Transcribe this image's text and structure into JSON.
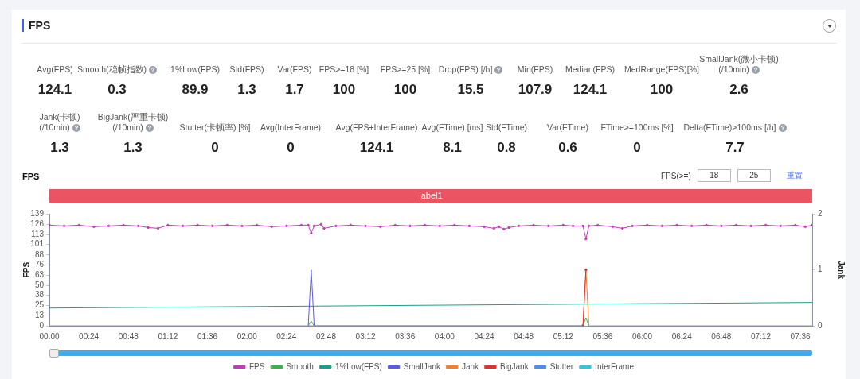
{
  "chart_data": [
    {
      "type": "other",
      "title": "FPS",
      "categories": [
        "Avg(FPS)",
        "Smooth(稳帧指数)",
        "1%Low(FPS)",
        "Std(FPS)",
        "Var(FPS)",
        "FPS>=18 [%]",
        "FPS>=25 [%]",
        "Drop(FPS) [/h]",
        "Min(FPS)",
        "Median(FPS)",
        "MedRange(FPS)[%]",
        "SmallJank(微小卡顿)\n(/10min)",
        "Jank(卡顿)\n(/10min)",
        "BigJank(严重卡顿)\n(/10min)",
        "Stutter(卡顿率) [%]",
        "Avg(InterFrame)",
        "Avg(FPS+InterFrame)",
        "Avg(FTime) [ms]",
        "Std(FTime)",
        "Var(FTime)",
        "FTime>=100ms [%]",
        "Delta(FTime)>100ms [/h]"
      ],
      "values": [
        124.1,
        0.3,
        89.9,
        1.3,
        1.7,
        100,
        100,
        15.5,
        107.9,
        124.1,
        100,
        2.6,
        1.3,
        1.3,
        0,
        0,
        124.1,
        8.1,
        0.8,
        0.6,
        0,
        7.7
      ],
      "data_labels": true
    },
    {
      "type": "line",
      "title": "FPS",
      "ylabel": "FPS",
      "y2label": "Jank",
      "annotations": [
        "label1",
        "FPS(>=)",
        "18",
        "25",
        "重置"
      ],
      "xlim": [
        0,
        7.72
      ],
      "xticks": [
        {
          "value": 0,
          "label": "00:00"
        },
        {
          "value": 0.4,
          "label": "00:24"
        },
        {
          "value": 0.8,
          "label": "00:48"
        },
        {
          "value": 1.2,
          "label": "01:12"
        },
        {
          "value": 1.6,
          "label": "01:36"
        },
        {
          "value": 2,
          "label": "02:00"
        },
        {
          "value": 2.4,
          "label": "02:24"
        },
        {
          "value": 2.8,
          "label": "02:48"
        },
        {
          "value": 3.2,
          "label": "03:12"
        },
        {
          "value": 3.6,
          "label": "03:36"
        },
        {
          "value": 4,
          "label": "04:00"
        },
        {
          "value": 4.4,
          "label": "04:24"
        },
        {
          "value": 4.8,
          "label": "04:48"
        },
        {
          "value": 5.2,
          "label": "05:12"
        },
        {
          "value": 5.6,
          "label": "05:36"
        },
        {
          "value": 6,
          "label": "06:00"
        },
        {
          "value": 6.4,
          "label": "06:24"
        },
        {
          "value": 6.8,
          "label": "06:48"
        },
        {
          "value": 7.2,
          "label": "07:12"
        },
        {
          "value": 7.6,
          "label": "07:36"
        }
      ],
      "ylim": [
        0,
        139
      ],
      "yticks": [
        0,
        13,
        25,
        38,
        50,
        63,
        76,
        88,
        101,
        113,
        126,
        139
      ],
      "y2lim": [
        0,
        2
      ],
      "y2ticks": [
        0,
        1,
        2
      ],
      "legend": "bottom",
      "grid": false,
      "series": [
        {
          "name": "FPS",
          "color": "#c23cb8",
          "marker": "circle",
          "x": [
            0,
            0.15,
            0.3,
            0.45,
            0.6,
            0.75,
            0.9,
            1.0,
            1.1,
            1.2,
            1.35,
            1.5,
            1.65,
            1.8,
            1.95,
            2.1,
            2.25,
            2.4,
            2.55,
            2.62,
            2.65,
            2.68,
            2.75,
            2.78,
            2.9,
            3.05,
            3.2,
            3.35,
            3.5,
            3.65,
            3.8,
            3.95,
            4.1,
            4.25,
            4.4,
            4.5,
            4.55,
            4.6,
            4.65,
            4.75,
            4.9,
            5.05,
            5.2,
            5.3,
            5.4,
            5.43,
            5.46,
            5.55,
            5.7,
            5.8,
            5.9,
            6.05,
            6.2,
            6.35,
            6.5,
            6.65,
            6.8,
            6.95,
            7.1,
            7.25,
            7.4,
            7.55,
            7.65,
            7.72
          ],
          "values": [
            125,
            124,
            125,
            123,
            124,
            125,
            124,
            122,
            121,
            125,
            124,
            125,
            124,
            125,
            124,
            125,
            123,
            124,
            125,
            125,
            115,
            124,
            126,
            121,
            124,
            125,
            124,
            123,
            125,
            124,
            125,
            124,
            125,
            124,
            123,
            121,
            123,
            120,
            122,
            124,
            125,
            124,
            125,
            124,
            124,
            107.9,
            124,
            125,
            123,
            121,
            124,
            125,
            124,
            125,
            124,
            125,
            124,
            125,
            124,
            125,
            124,
            125,
            123,
            125
          ]
        },
        {
          "name": "Smooth",
          "color": "#3cb04a",
          "marker": "none",
          "x": [
            2.62,
            2.65,
            2.68,
            5.4,
            5.43,
            5.46
          ],
          "values": [
            0,
            6,
            0,
            0,
            10,
            0
          ]
        },
        {
          "name": "1%Low(FPS)",
          "color": "#17a08c",
          "marker": "none",
          "x": [
            0,
            7.72
          ],
          "values": [
            22,
            29
          ]
        },
        {
          "name": "SmallJank",
          "color": "#5a5af0",
          "marker": "none",
          "axis": "y2",
          "x": [
            2.62,
            2.65,
            2.68
          ],
          "values": [
            0,
            1,
            0
          ]
        },
        {
          "name": "Jank",
          "color": "#f08030",
          "marker": "none",
          "axis": "y2",
          "x": [
            0,
            5.4,
            5.43,
            5.46,
            7.72
          ],
          "values": [
            0,
            0,
            1,
            0,
            0
          ]
        },
        {
          "name": "BigJank",
          "color": "#e03030",
          "marker": "circle",
          "axis": "y2",
          "x": [
            5.4,
            5.43
          ],
          "values": [
            0,
            1
          ]
        },
        {
          "name": "Stutter",
          "color": "#4a8ff0",
          "marker": "none",
          "axis": "y2"
        },
        {
          "name": "InterFrame",
          "color": "#30c8d8",
          "marker": "none",
          "axis": "y2"
        }
      ]
    }
  ]
}
